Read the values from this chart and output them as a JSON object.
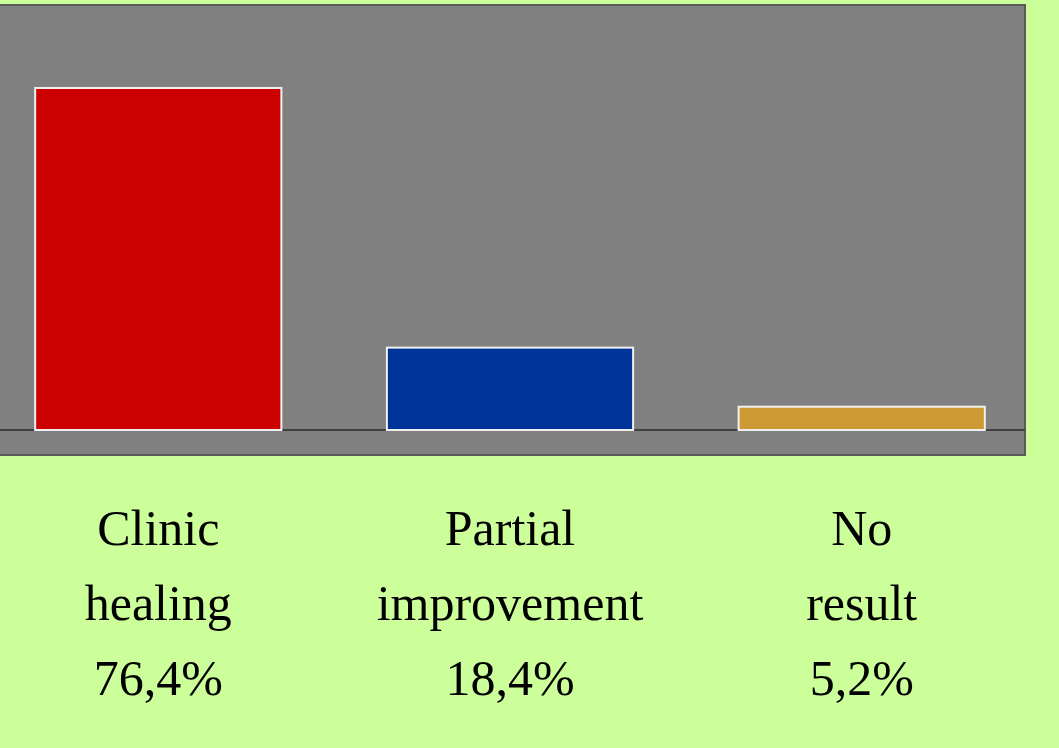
{
  "chart_data": {
    "type": "bar",
    "categories": [
      "Clinic healing",
      "Partial improvement",
      "No result"
    ],
    "values": [
      76.4,
      18.4,
      5.2
    ],
    "colors": [
      "#cc0000",
      "#003399",
      "#cc9933"
    ],
    "value_labels": [
      "76,4%",
      "18,4%",
      "5,2%"
    ],
    "relative": false
  }
}
